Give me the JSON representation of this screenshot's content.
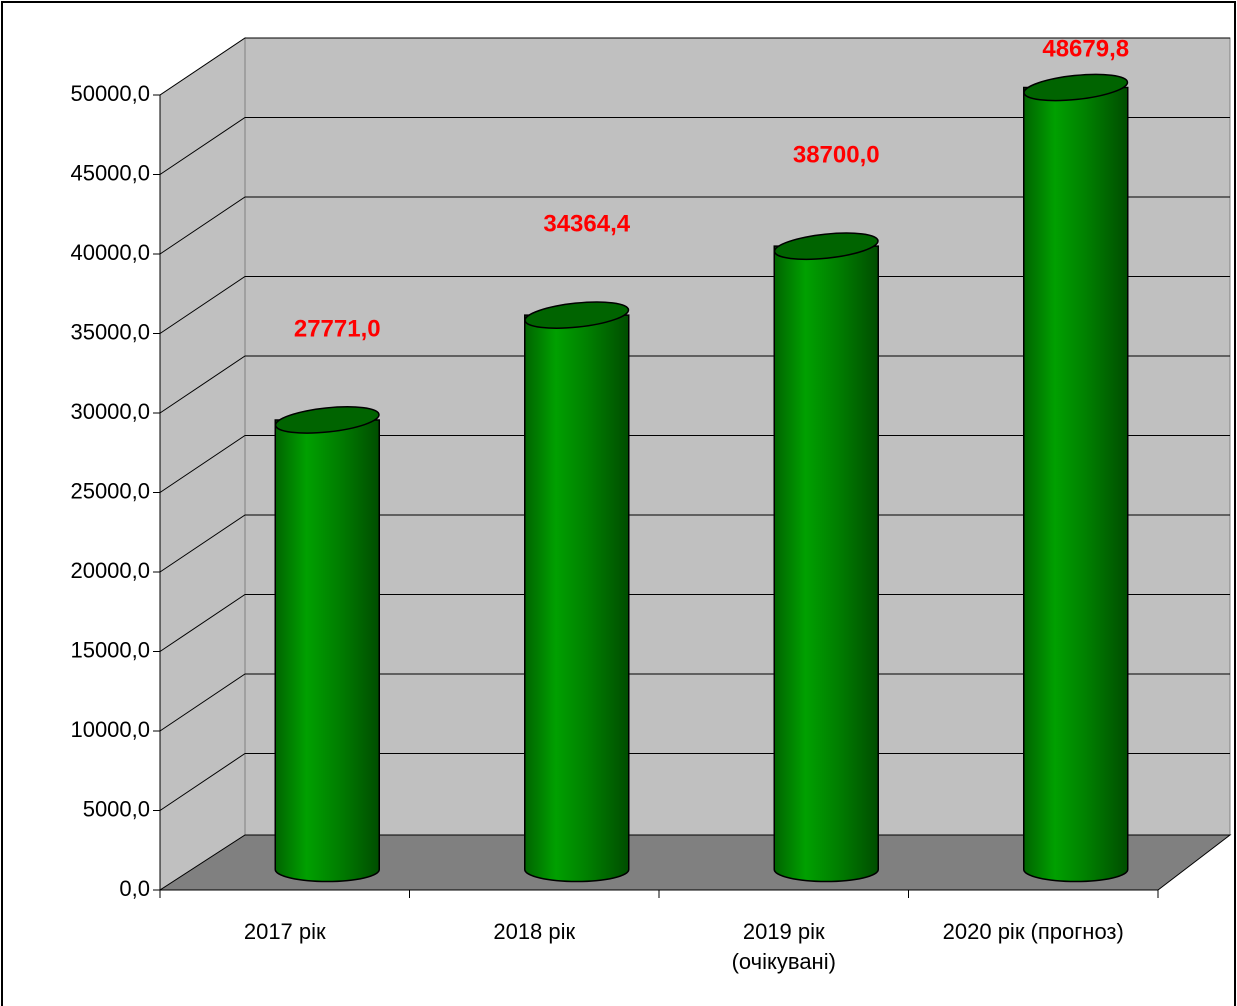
{
  "chart_data": {
    "type": "bar3d",
    "categories": [
      "2017 рік",
      "2018 рік",
      "2019 рік\n(очікувані)",
      "2020 рік (прогноз)"
    ],
    "values": [
      27771,
      34364.4,
      38700,
      48679.8
    ],
    "value_labels": [
      "27771,0",
      "34364,4",
      "38700,0",
      "48679,8"
    ],
    "color": "#008000",
    "ylim": [
      0,
      50000
    ],
    "yticks": [
      {
        "value": 0,
        "label": "0,0"
      },
      {
        "value": 5000,
        "label": "5000,0"
      },
      {
        "value": 10000,
        "label": "10000,0"
      },
      {
        "value": 15000,
        "label": "15000,0"
      },
      {
        "value": 20000,
        "label": "20000,0"
      },
      {
        "value": 25000,
        "label": "25000,0"
      },
      {
        "value": 30000,
        "label": "30000,0"
      },
      {
        "value": 35000,
        "label": "35000,0"
      },
      {
        "value": 40000,
        "label": "40000,0"
      },
      {
        "value": 45000,
        "label": "45000,0"
      },
      {
        "value": 50000,
        "label": "50000,0"
      }
    ],
    "grid": true
  }
}
